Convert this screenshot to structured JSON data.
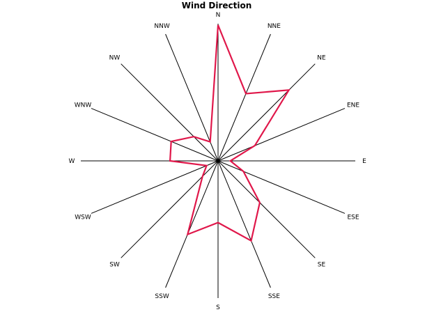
{
  "chart_data": {
    "type": "radar",
    "title": "Wind Direction",
    "directions": [
      "N",
      "NNE",
      "NE",
      "ENE",
      "E",
      "ESE",
      "SE",
      "SSE",
      "S",
      "SSW",
      "SW",
      "WSW",
      "W",
      "WNW",
      "NW",
      "NNW"
    ],
    "values": [
      0.99,
      0.53,
      0.73,
      0.29,
      0.09,
      0.2,
      0.43,
      0.63,
      0.45,
      0.58,
      0.16,
      0.09,
      0.35,
      0.37,
      0.25,
      0.15
    ],
    "rmax": 1,
    "series_color": "#e0174a",
    "grid": false
  }
}
